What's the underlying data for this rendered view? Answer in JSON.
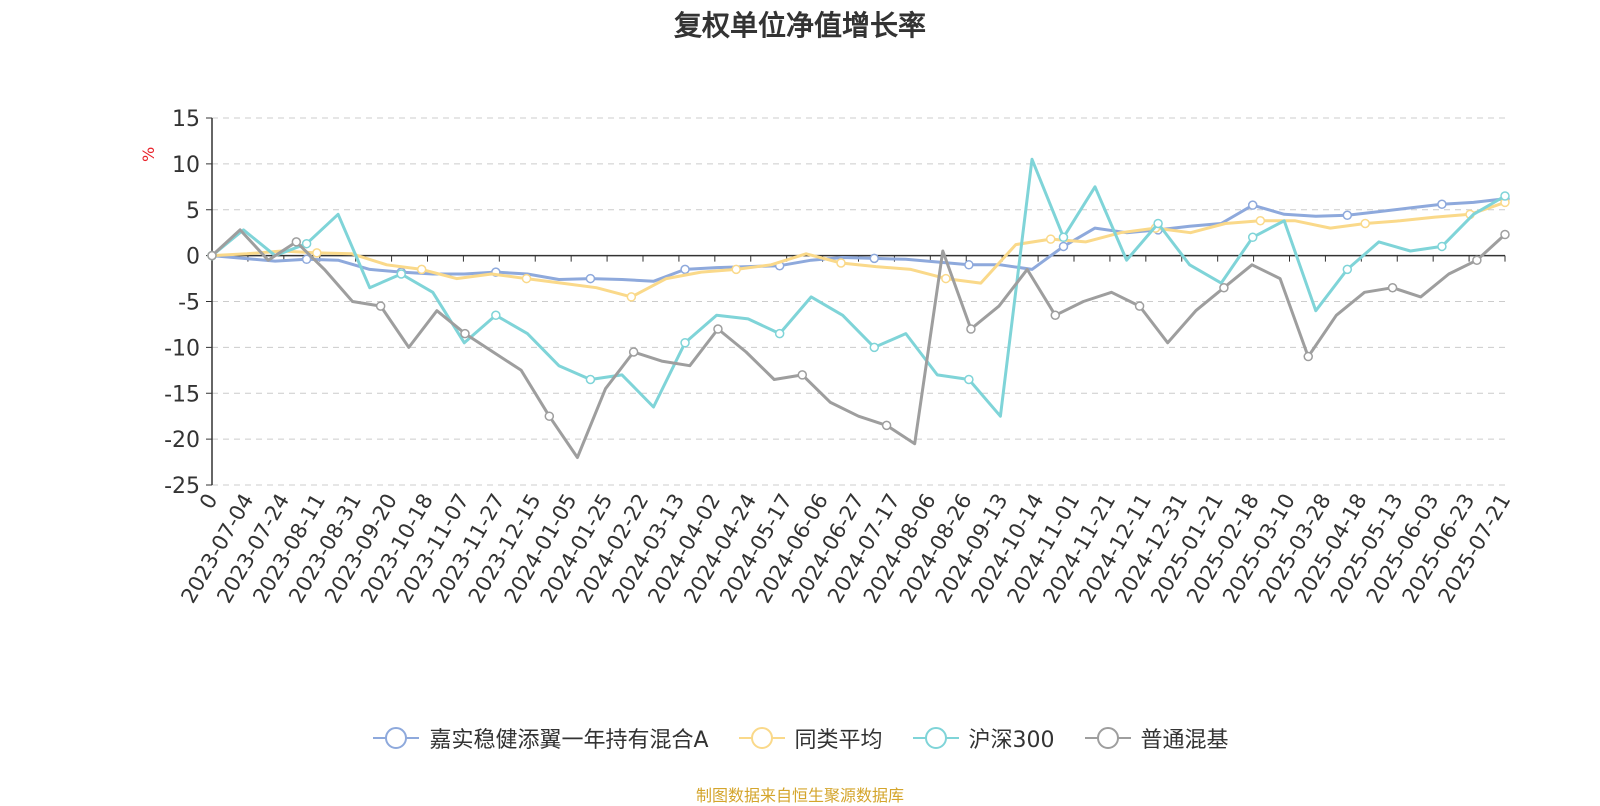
{
  "chart_data": {
    "type": "line",
    "title": "复权单位净值增长率",
    "ylabel": "%",
    "ylim": [
      -25,
      15
    ],
    "yticks": [
      15,
      10,
      5,
      0,
      -5,
      -10,
      -15,
      -20,
      -25
    ],
    "x_ticks": [
      "0",
      "2023-07-04",
      "2023-07-24",
      "2023-08-11",
      "2023-08-31",
      "2023-09-20",
      "2023-10-18",
      "2023-11-07",
      "2023-11-27",
      "2023-12-15",
      "2024-01-05",
      "2024-01-25",
      "2024-02-22",
      "2024-03-13",
      "2024-04-02",
      "2024-04-24",
      "2024-05-17",
      "2024-06-06",
      "2024-06-27",
      "2024-07-17",
      "2024-08-06",
      "2024-08-26",
      "2024-09-13",
      "2024-10-14",
      "2024-11-01",
      "2024-11-21",
      "2024-12-11",
      "2024-12-31",
      "2025-01-21",
      "2025-02-18",
      "2025-03-10",
      "2025-03-28",
      "2025-04-18",
      "2025-05-13",
      "2025-06-03",
      "2025-06-23",
      "2025-07-21"
    ],
    "grid": true,
    "legend_position": "bottom",
    "series": [
      {
        "name": "嘉实稳健添翼一年持有混合A",
        "color": "#8ea9dc",
        "values": [
          0,
          -0.3,
          -0.6,
          -0.4,
          -0.5,
          -1.5,
          -1.8,
          -2.0,
          -2.0,
          -1.8,
          -2.0,
          -2.6,
          -2.5,
          -2.6,
          -2.8,
          -1.5,
          -1.3,
          -1.2,
          -1.1,
          -0.5,
          -0.2,
          -0.3,
          -0.4,
          -0.7,
          -1.0,
          -1.0,
          -1.5,
          1.0,
          3.0,
          2.5,
          2.8,
          3.2,
          3.5,
          5.5,
          4.5,
          4.3,
          4.4,
          4.8,
          5.2,
          5.6,
          5.8,
          6.2
        ]
      },
      {
        "name": "同类平均",
        "color": "#fad98a",
        "values": [
          0,
          0.2,
          0.5,
          0.3,
          0.2,
          -1.0,
          -1.5,
          -2.5,
          -2.0,
          -2.5,
          -3.0,
          -3.5,
          -4.5,
          -2.5,
          -1.8,
          -1.5,
          -1.0,
          0.2,
          -0.8,
          -1.2,
          -1.5,
          -2.5,
          -3.0,
          1.2,
          1.8,
          1.5,
          2.5,
          3.0,
          2.5,
          3.5,
          3.8,
          3.8,
          3.0,
          3.5,
          3.8,
          4.2,
          4.5,
          5.8
        ]
      },
      {
        "name": "沪深300",
        "color": "#7fd4d8",
        "values": [
          0,
          2.8,
          0,
          1.3,
          4.5,
          -3.5,
          -2.0,
          -4.0,
          -9.5,
          -6.5,
          -8.5,
          -12.0,
          -13.5,
          -13.0,
          -16.5,
          -9.5,
          -6.5,
          -6.9,
          -8.5,
          -4.5,
          -6.5,
          -10.0,
          -8.5,
          -13.0,
          -13.5,
          -17.5,
          10.5,
          2.0,
          7.5,
          -0.5,
          3.5,
          -1.0,
          -3.0,
          2.0,
          3.8,
          -6.0,
          -1.5,
          1.5,
          0.5,
          1.0,
          4.5,
          6.5
        ]
      },
      {
        "name": "普通混基",
        "color": "#9e9e9e",
        "values": [
          0,
          2.8,
          -0.5,
          1.5,
          -1.5,
          -5.0,
          -5.5,
          -10.0,
          -6.0,
          -8.5,
          -10.5,
          -12.5,
          -17.5,
          -22.0,
          -14.5,
          -10.5,
          -11.5,
          -12.0,
          -8.0,
          -10.5,
          -13.5,
          -13.0,
          -16.0,
          -17.5,
          -18.5,
          -20.5,
          0.5,
          -8.0,
          -5.5,
          -1.5,
          -6.5,
          -5.0,
          -4.0,
          -5.5,
          -9.5,
          -6.0,
          -3.5,
          -1.0,
          -2.5,
          -11.0,
          -6.5,
          -4.0,
          -3.5,
          -4.5,
          -2.0,
          -0.5,
          2.3
        ]
      }
    ]
  },
  "source": "制图数据来自恒生聚源数据库"
}
